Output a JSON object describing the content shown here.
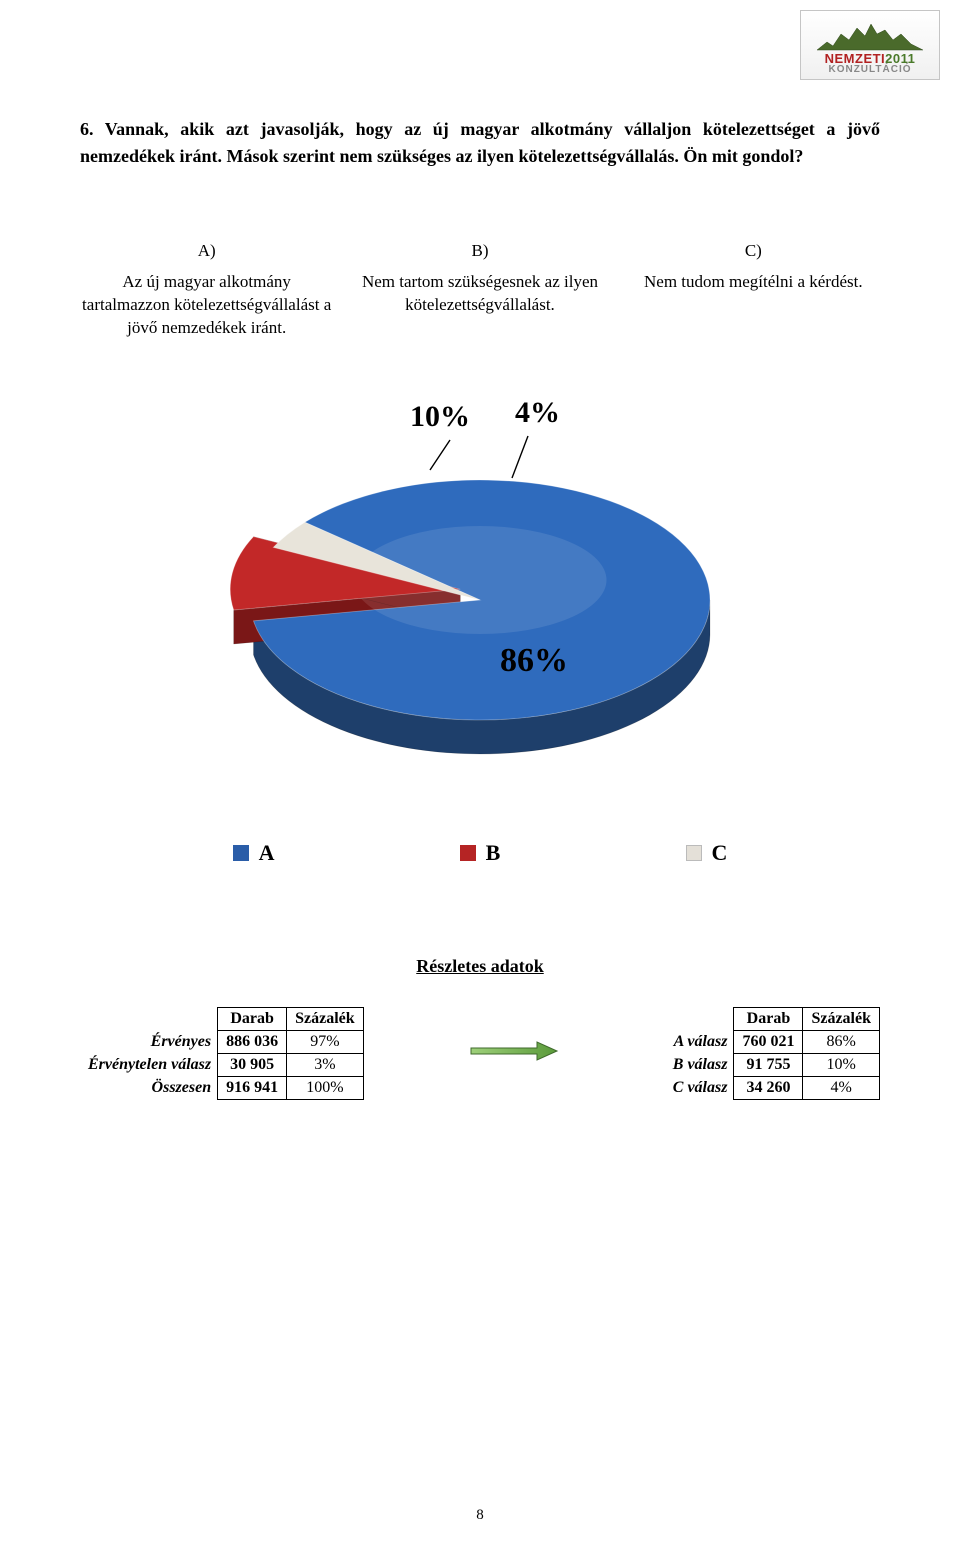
{
  "logo": {
    "line1_prefix": "NEMZETI",
    "line1_year": "2011",
    "line2": "KONZULTÁCIÓ",
    "border_color": "#c5c5c5",
    "skyline_color": "#4a6a2b",
    "red": "#b22222",
    "green": "#4a7a2a",
    "gray": "#888888"
  },
  "question": {
    "text": "6. Vannak, akik azt javasolják, hogy az új magyar alkotmány vállaljon kötelezettséget a jövő nemzedékek iránt. Mások szerint nem szükséges az ilyen kötelezettségvállalás. Ön mit gondol?",
    "fontsize": 18
  },
  "options": {
    "a": {
      "letter": "A)",
      "text": "Az új magyar alkotmány tartalmazzon kötelezettségvállalást a jövő nemzedékek iránt."
    },
    "b": {
      "letter": "B)",
      "text": "Nem tartom szükségesnek az ilyen kötelezettségvállalást."
    },
    "c": {
      "letter": "C)",
      "text": "Nem tudom megítélni a kérdést."
    }
  },
  "pie": {
    "type": "pie-3d",
    "slices": [
      {
        "label": "A",
        "value": 86,
        "display": "86%",
        "color_top": "#2f6bbd",
        "color_side": "#1e3f6b"
      },
      {
        "label": "B",
        "value": 10,
        "display": "10%",
        "color_top": "#c22828",
        "color_side": "#7a1717"
      },
      {
        "label": "C",
        "value": 4,
        "display": "4%",
        "color_top": "#e8e4da",
        "color_side": "#b8b4aa"
      }
    ],
    "label_fontsize": 30,
    "label_font": "Times New Roman",
    "label_weight": "bold",
    "tilt_deg": 60,
    "explode_slice": "B",
    "background": "#ffffff"
  },
  "legend": {
    "a": {
      "label": "A",
      "swatch": "#2a5da8"
    },
    "b": {
      "label": "B",
      "swatch": "#b52424"
    },
    "c": {
      "label": "C",
      "swatch": "#e4e0d8"
    },
    "fontsize": 22
  },
  "details": {
    "title": "Részletes adatok",
    "left": {
      "headers": {
        "count": "Darab",
        "pct": "Százalék"
      },
      "rows": [
        {
          "label": "Érvényes",
          "count": "886 036",
          "pct": "97%"
        },
        {
          "label": "Érvénytelen válasz",
          "count": "30 905",
          "pct": "3%"
        },
        {
          "label": "Összesen",
          "count": "916 941",
          "pct": "100%"
        }
      ]
    },
    "right": {
      "headers": {
        "count": "Darab",
        "pct": "Százalék"
      },
      "rows": [
        {
          "label": "A válasz",
          "count": "760 021",
          "pct": "86%"
        },
        {
          "label": "B válasz",
          "count": "91 755",
          "pct": "10%"
        },
        {
          "label": "C válasz",
          "count": "34 260",
          "pct": "4%"
        }
      ]
    },
    "arrow_color": "#6fae4a",
    "arrow_edge": "#3f6a2c"
  },
  "page_number": "8"
}
